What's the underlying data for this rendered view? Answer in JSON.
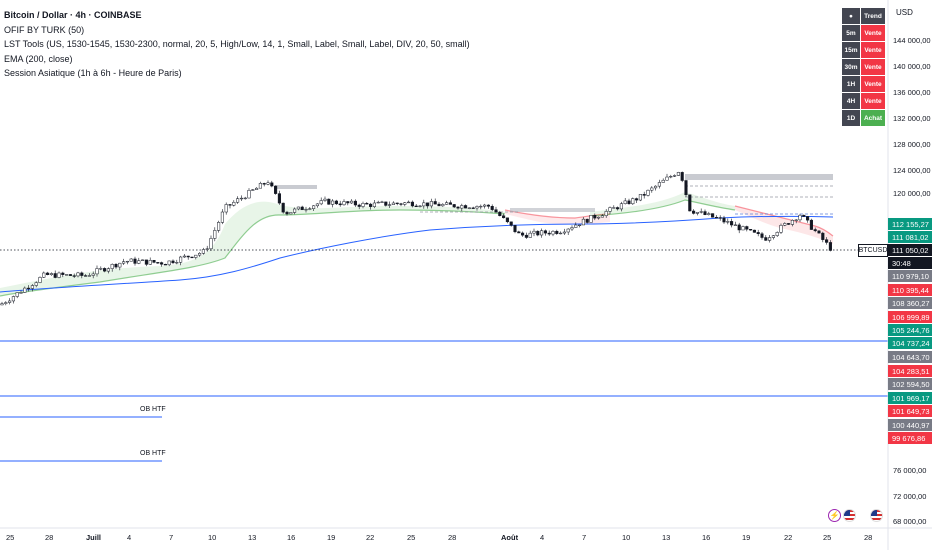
{
  "legend": {
    "title": "Bitcoin / Dollar · 4h · COINBASE",
    "indicators": [
      "OFIF BY TURK (50)",
      "LST Tools (US, 1530-1545, 1530-2300, normal, 20, 5, High/Low, 14, 1, Small, Label, Small, Label, DIV, 20, 50, small)",
      "EMA (200, close)",
      "Session Asiatique (1h à 6h - Heure de Paris)"
    ]
  },
  "currency": "USD",
  "trend_table": {
    "header": "Trend",
    "rows": [
      {
        "tf": "5m",
        "signal": "Vente",
        "color": "#f23645"
      },
      {
        "tf": "15m",
        "signal": "Vente",
        "color": "#f23645"
      },
      {
        "tf": "30m",
        "signal": "Vente",
        "color": "#f23645"
      },
      {
        "tf": "1H",
        "signal": "Vente",
        "color": "#f23645"
      },
      {
        "tf": "4H",
        "signal": "Vente",
        "color": "#f23645"
      },
      {
        "tf": "1D",
        "signal": "Achat",
        "color": "#4caf50"
      }
    ]
  },
  "y_axis_labels": [
    "144 000,00",
    "140 000,00",
    "136 000,00",
    "132 000,00",
    "128 000,00",
    "124 000,00",
    "120 000,00",
    "76 000,00",
    "72 000,00",
    "68 000,00"
  ],
  "price_labels": [
    {
      "text": "112 155,27",
      "color": "#089981"
    },
    {
      "text": "111 081,02",
      "color": "#089981"
    },
    {
      "text": "111 050,02",
      "color": "#131722"
    },
    {
      "text": "30:48",
      "color": "#131722"
    },
    {
      "text": "110 979,10",
      "color": "#787b86"
    },
    {
      "text": "110 395,44",
      "color": "#f23645"
    },
    {
      "text": "108 360,27",
      "color": "#787b86"
    },
    {
      "text": "106 999,89",
      "color": "#f23645"
    },
    {
      "text": "105 244,76",
      "color": "#089981"
    },
    {
      "text": "104 737,24",
      "color": "#089981"
    },
    {
      "text": "104 643,70",
      "color": "#787b86"
    },
    {
      "text": "104 283,51",
      "color": "#f23645"
    },
    {
      "text": "102 594,50",
      "color": "#787b86"
    },
    {
      "text": "101 969,17",
      "color": "#089981"
    },
    {
      "text": "101 649,73",
      "color": "#f23645"
    },
    {
      "text": "100 440,97",
      "color": "#787b86"
    },
    {
      "text": "99 676,86",
      "color": "#f23645"
    }
  ],
  "symbol_tag": "BTCUSD",
  "x_axis_labels": [
    "25",
    "28",
    "Juill",
    "4",
    "7",
    "10",
    "13",
    "16",
    "19",
    "22",
    "25",
    "28",
    "Août",
    "4",
    "7",
    "10",
    "13",
    "16",
    "19",
    "22",
    "25",
    "28"
  ],
  "ob_labels": [
    "OB HTF",
    "OB HTF"
  ],
  "colors": {
    "up": "#131722",
    "down": "#131722",
    "ema": "#2962ff",
    "green_band": "#4caf50",
    "red_band": "#f23645"
  },
  "chart_data": {
    "type": "candlestick",
    "y_unit": "USD",
    "close_series_approx": [
      {
        "date": "Jun 24",
        "close": 102600
      },
      {
        "date": "Jun 27",
        "close": 107300
      },
      {
        "date": "Jun 30",
        "close": 107200
      },
      {
        "date": "Jul 3",
        "close": 109500
      },
      {
        "date": "Jul 6",
        "close": 109200
      },
      {
        "date": "Jul 9",
        "close": 111000
      },
      {
        "date": "Jul 11",
        "close": 117800
      },
      {
        "date": "Jul 14",
        "close": 122000
      },
      {
        "date": "Jul 15",
        "close": 117000
      },
      {
        "date": "Jul 18",
        "close": 118800
      },
      {
        "date": "Jul 21",
        "close": 118300
      },
      {
        "date": "Jul 24",
        "close": 118600
      },
      {
        "date": "Jul 27",
        "close": 118200
      },
      {
        "date": "Jul 30",
        "close": 118100
      },
      {
        "date": "Aug 2",
        "close": 113500
      },
      {
        "date": "Aug 5",
        "close": 114200
      },
      {
        "date": "Aug 8",
        "close": 116800
      },
      {
        "date": "Aug 11",
        "close": 119500
      },
      {
        "date": "Aug 14",
        "close": 123800
      },
      {
        "date": "Aug 15",
        "close": 117500
      },
      {
        "date": "Aug 18",
        "close": 116000
      },
      {
        "date": "Aug 20",
        "close": 113000
      },
      {
        "date": "Aug 22",
        "close": 116800
      },
      {
        "date": "Aug 25",
        "close": 111050
      }
    ],
    "ema200_approx": [
      {
        "date": "Jun 24",
        "value": 101500
      },
      {
        "date": "Jul 10",
        "value": 104000
      },
      {
        "date": "Jul 25",
        "value": 110500
      },
      {
        "date": "Aug 10",
        "value": 113200
      },
      {
        "date": "Aug 25",
        "value": 114200
      }
    ],
    "horizontal_lines": [
      106999.89,
      102594.5
    ],
    "ob_htf_levels": [
      101649.73,
      99676.86
    ],
    "ylim": [
      66000,
      148000
    ]
  }
}
